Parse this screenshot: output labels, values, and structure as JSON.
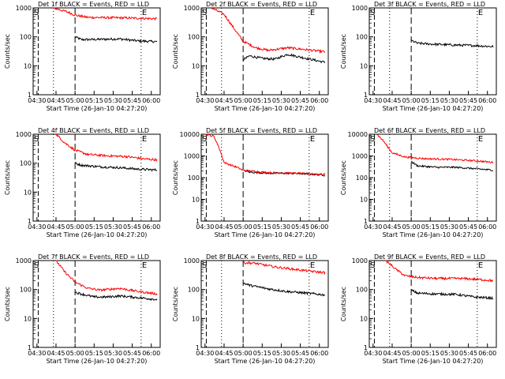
{
  "panel_layout": {
    "columns": 3,
    "rows": 3
  },
  "chart_data": [
    {
      "type": "line",
      "title": "Det 1f BLACK = Events, RED = LLD",
      "xlabel": "Start Time (26-Jan-10 04:27:20)",
      "ylabel": "Counts/sec",
      "x_ticks": [
        "04:30",
        "04:45",
        "05:00",
        "05:15",
        "05:30",
        "05:45",
        "06:00"
      ],
      "y_ticks": [
        "1",
        "10",
        "100",
        "1000"
      ],
      "ylim": [
        1,
        1000
      ],
      "yscale": "log",
      "markers": {
        "start": "S",
        "end": "E",
        "label_pos": "S"
      },
      "series": [
        {
          "color": "#000000",
          "points": [
            [
              0.06,
              0.5
            ],
            [
              0.08,
              0.48
            ],
            [
              0.1,
              0.48
            ],
            [
              0.3,
              0.45
            ],
            [
              0.6,
              0.51
            ]
          ],
          "start_at": "05:00",
          "points_xy": [
            [
              "05:00",
              100
            ],
            [
              "05:05",
              80
            ],
            [
              "05:20",
              82
            ],
            [
              "05:35",
              85
            ],
            [
              "05:50",
              72
            ],
            [
              "06:05",
              68
            ]
          ]
        },
        {
          "color": "#ff0000",
          "points_xy": [
            [
              "04:43",
              1000
            ],
            [
              "04:55",
              700
            ],
            [
              "05:00",
              560
            ],
            [
              "05:10",
              470
            ],
            [
              "05:25",
              460
            ],
            [
              "05:40",
              450
            ],
            [
              "06:05",
              420
            ]
          ]
        }
      ]
    },
    {
      "type": "line",
      "title": "Det 2f BLACK = Events, RED = LLD",
      "xlabel": "Start Time (26-Jan-10 04:27:20)",
      "ylabel": "Counts/sec",
      "x_ticks": [
        "04:30",
        "04:45",
        "05:00",
        "05:15",
        "05:30",
        "05:45",
        "06:00"
      ],
      "y_ticks": [
        "1",
        "10",
        "100",
        "1000"
      ],
      "ylim": [
        1,
        1000
      ],
      "yscale": "log",
      "markers": {
        "start": "S",
        "end": "E",
        "label_pos": "S"
      },
      "series": [
        {
          "color": "#000000",
          "points_xy": [
            [
              "05:00",
              16
            ],
            [
              "05:05",
              22
            ],
            [
              "05:15",
              18
            ],
            [
              "05:25",
              17
            ],
            [
              "05:35",
              25
            ],
            [
              "05:45",
              20
            ],
            [
              "06:05",
              13
            ]
          ]
        },
        {
          "color": "#ff0000",
          "points_xy": [
            [
              "04:35",
              1000
            ],
            [
              "04:45",
              600
            ],
            [
              "04:52",
              220
            ],
            [
              "05:00",
              70
            ],
            [
              "05:10",
              42
            ],
            [
              "05:20",
              34
            ],
            [
              "05:35",
              42
            ],
            [
              "05:50",
              36
            ],
            [
              "06:05",
              30
            ]
          ]
        }
      ]
    },
    {
      "type": "line",
      "title": "Det 3f BLACK = Events, RED = LLD",
      "xlabel": "Start Time (26-Jan-10 04:27:20)",
      "ylabel": "Counts/sec",
      "x_ticks": [
        "04:30",
        "04:45",
        "05:00",
        "05:15",
        "05:30",
        "05:45",
        "06:00"
      ],
      "y_ticks": [
        "1",
        "10",
        "100",
        "1000"
      ],
      "ylim": [
        1,
        1000
      ],
      "yscale": "log",
      "markers": {
        "start": "S",
        "end": "E",
        "label_pos": "S"
      },
      "series": [
        {
          "color": "#000000",
          "points_xy": [
            [
              "05:00",
              75
            ],
            [
              "05:05",
              60
            ],
            [
              "05:20",
              55
            ],
            [
              "05:35",
              52
            ],
            [
              "05:50",
              50
            ],
            [
              "06:05",
              46
            ]
          ]
        }
      ]
    },
    {
      "type": "line",
      "title": "Det 4f BLACK = Events, RED = LLD",
      "xlabel": "Start Time (26-Jan-10 04:27:20)",
      "ylabel": "Counts/sec",
      "x_ticks": [
        "04:30",
        "04:45",
        "05:00",
        "05:15",
        "05:30",
        "05:45",
        "06:00"
      ],
      "y_ticks": [
        "1",
        "10",
        "100",
        "1000"
      ],
      "ylim": [
        1,
        1000
      ],
      "yscale": "log",
      "markers": {
        "start": "S",
        "end": "E",
        "label_pos": "S"
      },
      "series": [
        {
          "color": "#000000",
          "points_xy": [
            [
              "05:00",
              100
            ],
            [
              "05:05",
              85
            ],
            [
              "05:20",
              75
            ],
            [
              "05:35",
              70
            ],
            [
              "05:50",
              62
            ],
            [
              "06:05",
              58
            ]
          ]
        },
        {
          "color": "#ff0000",
          "points_xy": [
            [
              "04:45",
              1000
            ],
            [
              "04:52",
              500
            ],
            [
              "05:00",
              280
            ],
            [
              "05:10",
              200
            ],
            [
              "05:25",
              180
            ],
            [
              "05:40",
              170
            ],
            [
              "05:55",
              140
            ],
            [
              "06:05",
              130
            ]
          ]
        }
      ]
    },
    {
      "type": "line",
      "title": "Det 5f BLACK = Events, RED = LLD",
      "xlabel": "Start Time (26-Jan-10 04:27:20)",
      "ylabel": "Counts/sec",
      "x_ticks": [
        "04:30",
        "04:45",
        "05:00",
        "05:15",
        "05:30",
        "05:45",
        "06:00"
      ],
      "y_ticks": [
        "1",
        "10",
        "100",
        "1000",
        "10000"
      ],
      "ylim": [
        1,
        10000
      ],
      "yscale": "log",
      "markers": {
        "start": "S",
        "end": "E",
        "label_pos": "S"
      },
      "series": [
        {
          "color": "#000000",
          "points_xy": [
            [
              "05:00",
              220
            ],
            [
              "05:05",
              180
            ],
            [
              "05:20",
              160
            ],
            [
              "05:35",
              160
            ],
            [
              "05:50",
              150
            ],
            [
              "06:05",
              130
            ]
          ]
        },
        {
          "color": "#ff0000",
          "points_xy": [
            [
              "04:30",
              10000
            ],
            [
              "04:37",
              8000
            ],
            [
              "04:41",
              2500
            ],
            [
              "04:45",
              500
            ],
            [
              "04:55",
              300
            ],
            [
              "05:00",
              220
            ],
            [
              "05:20",
              170
            ],
            [
              "05:40",
              160
            ],
            [
              "06:05",
              140
            ]
          ]
        }
      ]
    },
    {
      "type": "line",
      "title": "Det 6f BLACK = Events, RED = LLD",
      "xlabel": "Start Time (26-Jan-10 04:27:20)",
      "ylabel": "Counts/sec",
      "x_ticks": [
        "04:30",
        "04:45",
        "05:00",
        "05:15",
        "05:30",
        "05:45",
        "06:00"
      ],
      "y_ticks": [
        "1",
        "10",
        "100",
        "1000",
        "10000"
      ],
      "ylim": [
        1,
        10000
      ],
      "yscale": "log",
      "markers": {
        "start": "S",
        "end": "E",
        "label_pos": "S"
      },
      "series": [
        {
          "color": "#000000",
          "points_xy": [
            [
              "05:00",
              550
            ],
            [
              "05:05",
              350
            ],
            [
              "05:20",
              300
            ],
            [
              "05:35",
              300
            ],
            [
              "05:50",
              260
            ],
            [
              "06:05",
              220
            ]
          ]
        },
        {
          "color": "#ff0000",
          "points_xy": [
            [
              "04:33",
              10000
            ],
            [
              "04:38",
              5000
            ],
            [
              "04:45",
              1400
            ],
            [
              "04:55",
              900
            ],
            [
              "05:10",
              750
            ],
            [
              "05:30",
              700
            ],
            [
              "05:50",
              600
            ],
            [
              "06:05",
              500
            ]
          ]
        }
      ]
    },
    {
      "type": "line",
      "title": "Det 7f BLACK = Events, RED = LLD",
      "xlabel": "Start Time (26-Jan-10 04:27:20)",
      "ylabel": "Counts/sec",
      "x_ticks": [
        "04:30",
        "04:45",
        "05:00",
        "05:15",
        "05:30",
        "05:45",
        "06:00"
      ],
      "y_ticks": [
        "1",
        "10",
        "100",
        "1000"
      ],
      "ylim": [
        1,
        1000
      ],
      "yscale": "log",
      "markers": {
        "start": "S",
        "end": "E",
        "label_pos": "S"
      },
      "series": [
        {
          "color": "#000000",
          "points_xy": [
            [
              "05:00",
              80
            ],
            [
              "05:05",
              70
            ],
            [
              "05:15",
              55
            ],
            [
              "05:25",
              55
            ],
            [
              "05:35",
              60
            ],
            [
              "05:45",
              55
            ],
            [
              "06:05",
              45
            ]
          ]
        },
        {
          "color": "#ff0000",
          "points_xy": [
            [
              "04:45",
              1000
            ],
            [
              "04:52",
              400
            ],
            [
              "05:00",
              180
            ],
            [
              "05:10",
              110
            ],
            [
              "05:20",
              95
            ],
            [
              "05:35",
              110
            ],
            [
              "05:50",
              85
            ],
            [
              "06:05",
              70
            ]
          ]
        }
      ]
    },
    {
      "type": "line",
      "title": "Det 8f BLACK = Events, RED = LLD",
      "xlabel": "Start Time (26-Jan-10 04:27:20)",
      "ylabel": "Counts/sec",
      "x_ticks": [
        "04:30",
        "04:45",
        "05:00",
        "05:15",
        "05:30",
        "05:45",
        "06:00"
      ],
      "y_ticks": [
        "1",
        "10",
        "100",
        "1000"
      ],
      "ylim": [
        1,
        1000
      ],
      "yscale": "log",
      "markers": {
        "start": "S",
        "end": "E",
        "label_pos": "S"
      },
      "series": [
        {
          "color": "#000000",
          "points_xy": [
            [
              "05:00",
              170
            ],
            [
              "05:05",
              140
            ],
            [
              "05:20",
              105
            ],
            [
              "05:35",
              85
            ],
            [
              "05:50",
              75
            ],
            [
              "06:05",
              65
            ]
          ]
        },
        {
          "color": "#ff0000",
          "points_xy": [
            [
              "05:00",
              850
            ],
            [
              "05:10",
              800
            ],
            [
              "05:25",
              600
            ],
            [
              "05:40",
              500
            ],
            [
              "05:55",
              420
            ],
            [
              "06:05",
              380
            ]
          ]
        }
      ]
    },
    {
      "type": "line",
      "title": "Det 9f BLACK = Events, RED = LLD",
      "xlabel": "Start Time (26-Jan-10 04:27:20)",
      "ylabel": "Counts/sec",
      "x_ticks": [
        "04:30",
        "04:45",
        "05:00",
        "05:15",
        "05:30",
        "05:45",
        "06:00"
      ],
      "y_ticks": [
        "1",
        "10",
        "100",
        "1000"
      ],
      "ylim": [
        1,
        1000
      ],
      "yscale": "log",
      "markers": {
        "start": "S",
        "end": "E",
        "label_pos": "S"
      },
      "series": [
        {
          "color": "#000000",
          "points_xy": [
            [
              "05:00",
              95
            ],
            [
              "05:05",
              75
            ],
            [
              "05:20",
              70
            ],
            [
              "05:35",
              68
            ],
            [
              "05:50",
              55
            ],
            [
              "06:05",
              50
            ]
          ]
        },
        {
          "color": "#ff0000",
          "points_xy": [
            [
              "04:40",
              1000
            ],
            [
              "04:48",
              500
            ],
            [
              "04:55",
              300
            ],
            [
              "05:05",
              260
            ],
            [
              "05:20",
              240
            ],
            [
              "05:40",
              240
            ],
            [
              "05:55",
              220
            ],
            [
              "06:05",
              200
            ]
          ]
        }
      ]
    }
  ]
}
